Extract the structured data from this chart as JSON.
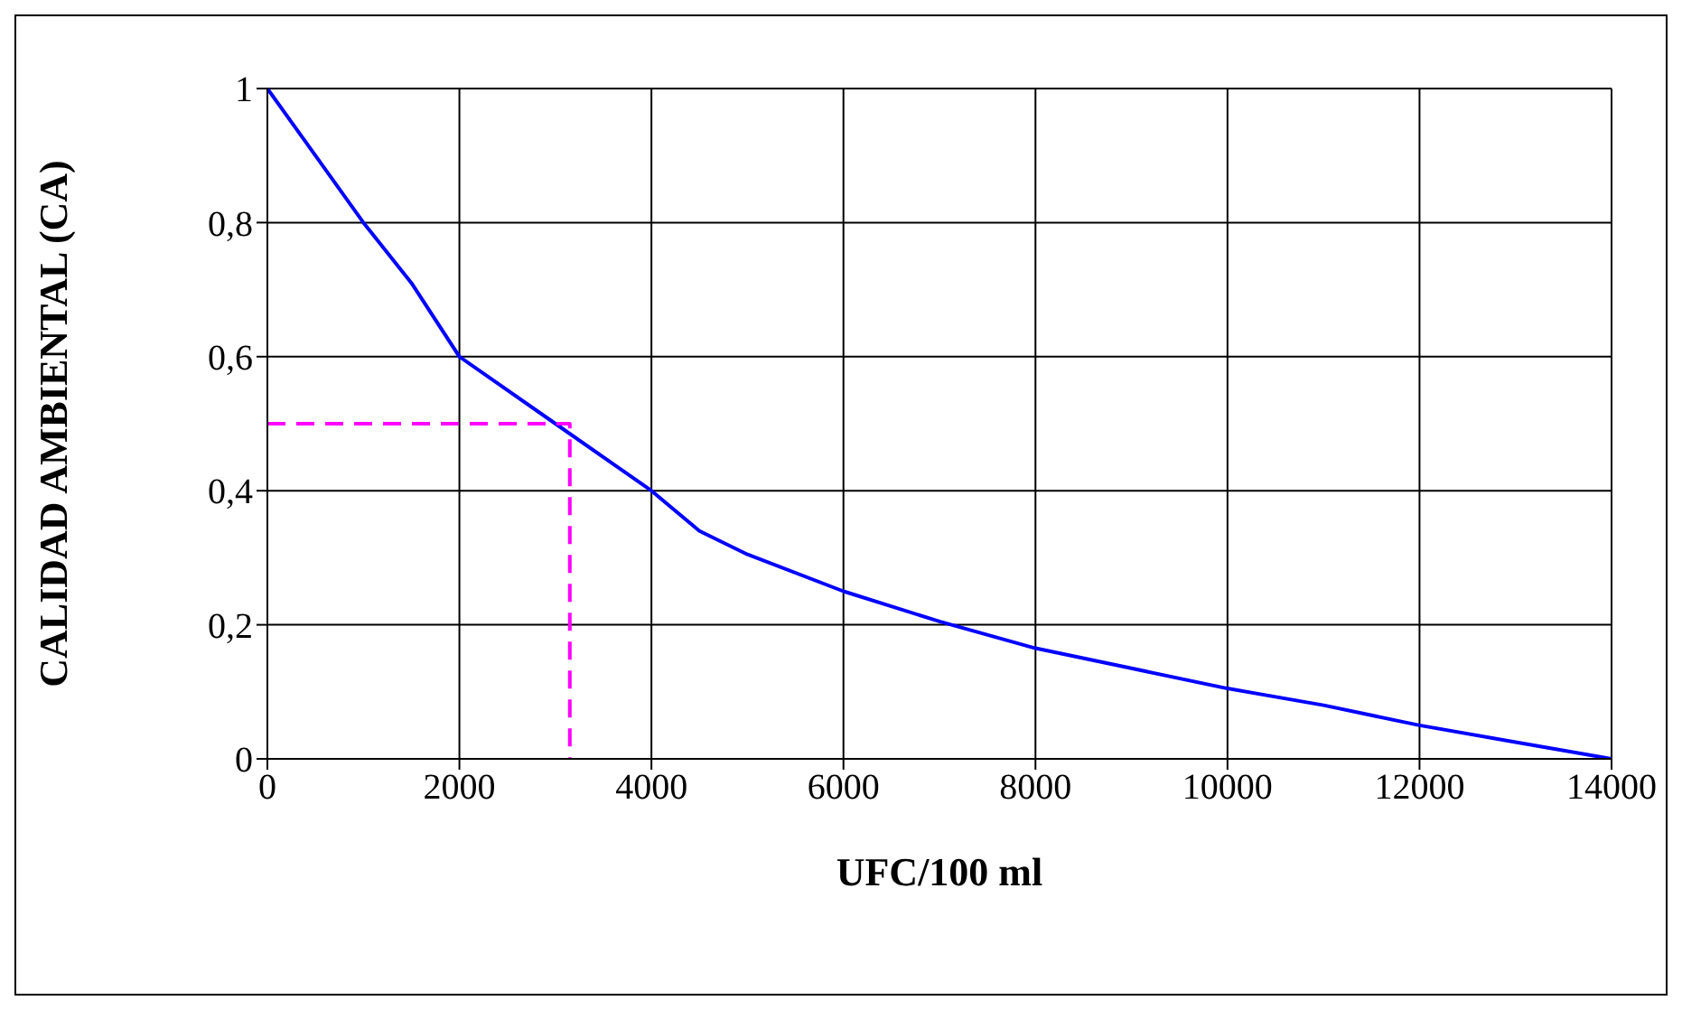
{
  "chart_data": {
    "type": "line",
    "xlabel": "UFC/100 ml",
    "ylabel": "CALIDAD AMBIENTAL (CA)",
    "xlim": [
      0,
      14000
    ],
    "xticks": [
      0,
      2000,
      4000,
      6000,
      8000,
      10000,
      12000,
      14000
    ],
    "ylim": [
      0,
      1
    ],
    "yticks": [
      0,
      {
        "value": 0.2,
        "label": "0,2"
      },
      {
        "value": 0.4,
        "label": "0,4"
      },
      {
        "value": 0.6,
        "label": "0,6"
      },
      {
        "value": 0.8,
        "label": "0,8"
      },
      1
    ],
    "grid": true,
    "marker": "none",
    "series": [
      {
        "color": "#0000ff",
        "line_style": "solid",
        "x": [
          0,
          500,
          1000,
          1500,
          2000,
          3000,
          4000,
          4500,
          5000,
          6000,
          7000,
          8000,
          9000,
          10000,
          11000,
          12000,
          13000,
          14000
        ],
        "values": [
          1,
          0.9,
          0.8,
          0.71,
          0.6,
          0.5,
          0.4,
          0.34,
          0.305,
          0.25,
          0.205,
          0.165,
          0.135,
          0.105,
          0.08,
          0.05,
          0.025,
          0
        ]
      },
      {
        "color": "#ff00ff",
        "line_style": "dashed",
        "x": [
          0,
          3150,
          3150
        ],
        "values": [
          0.5,
          0.5,
          0
        ]
      }
    ]
  }
}
